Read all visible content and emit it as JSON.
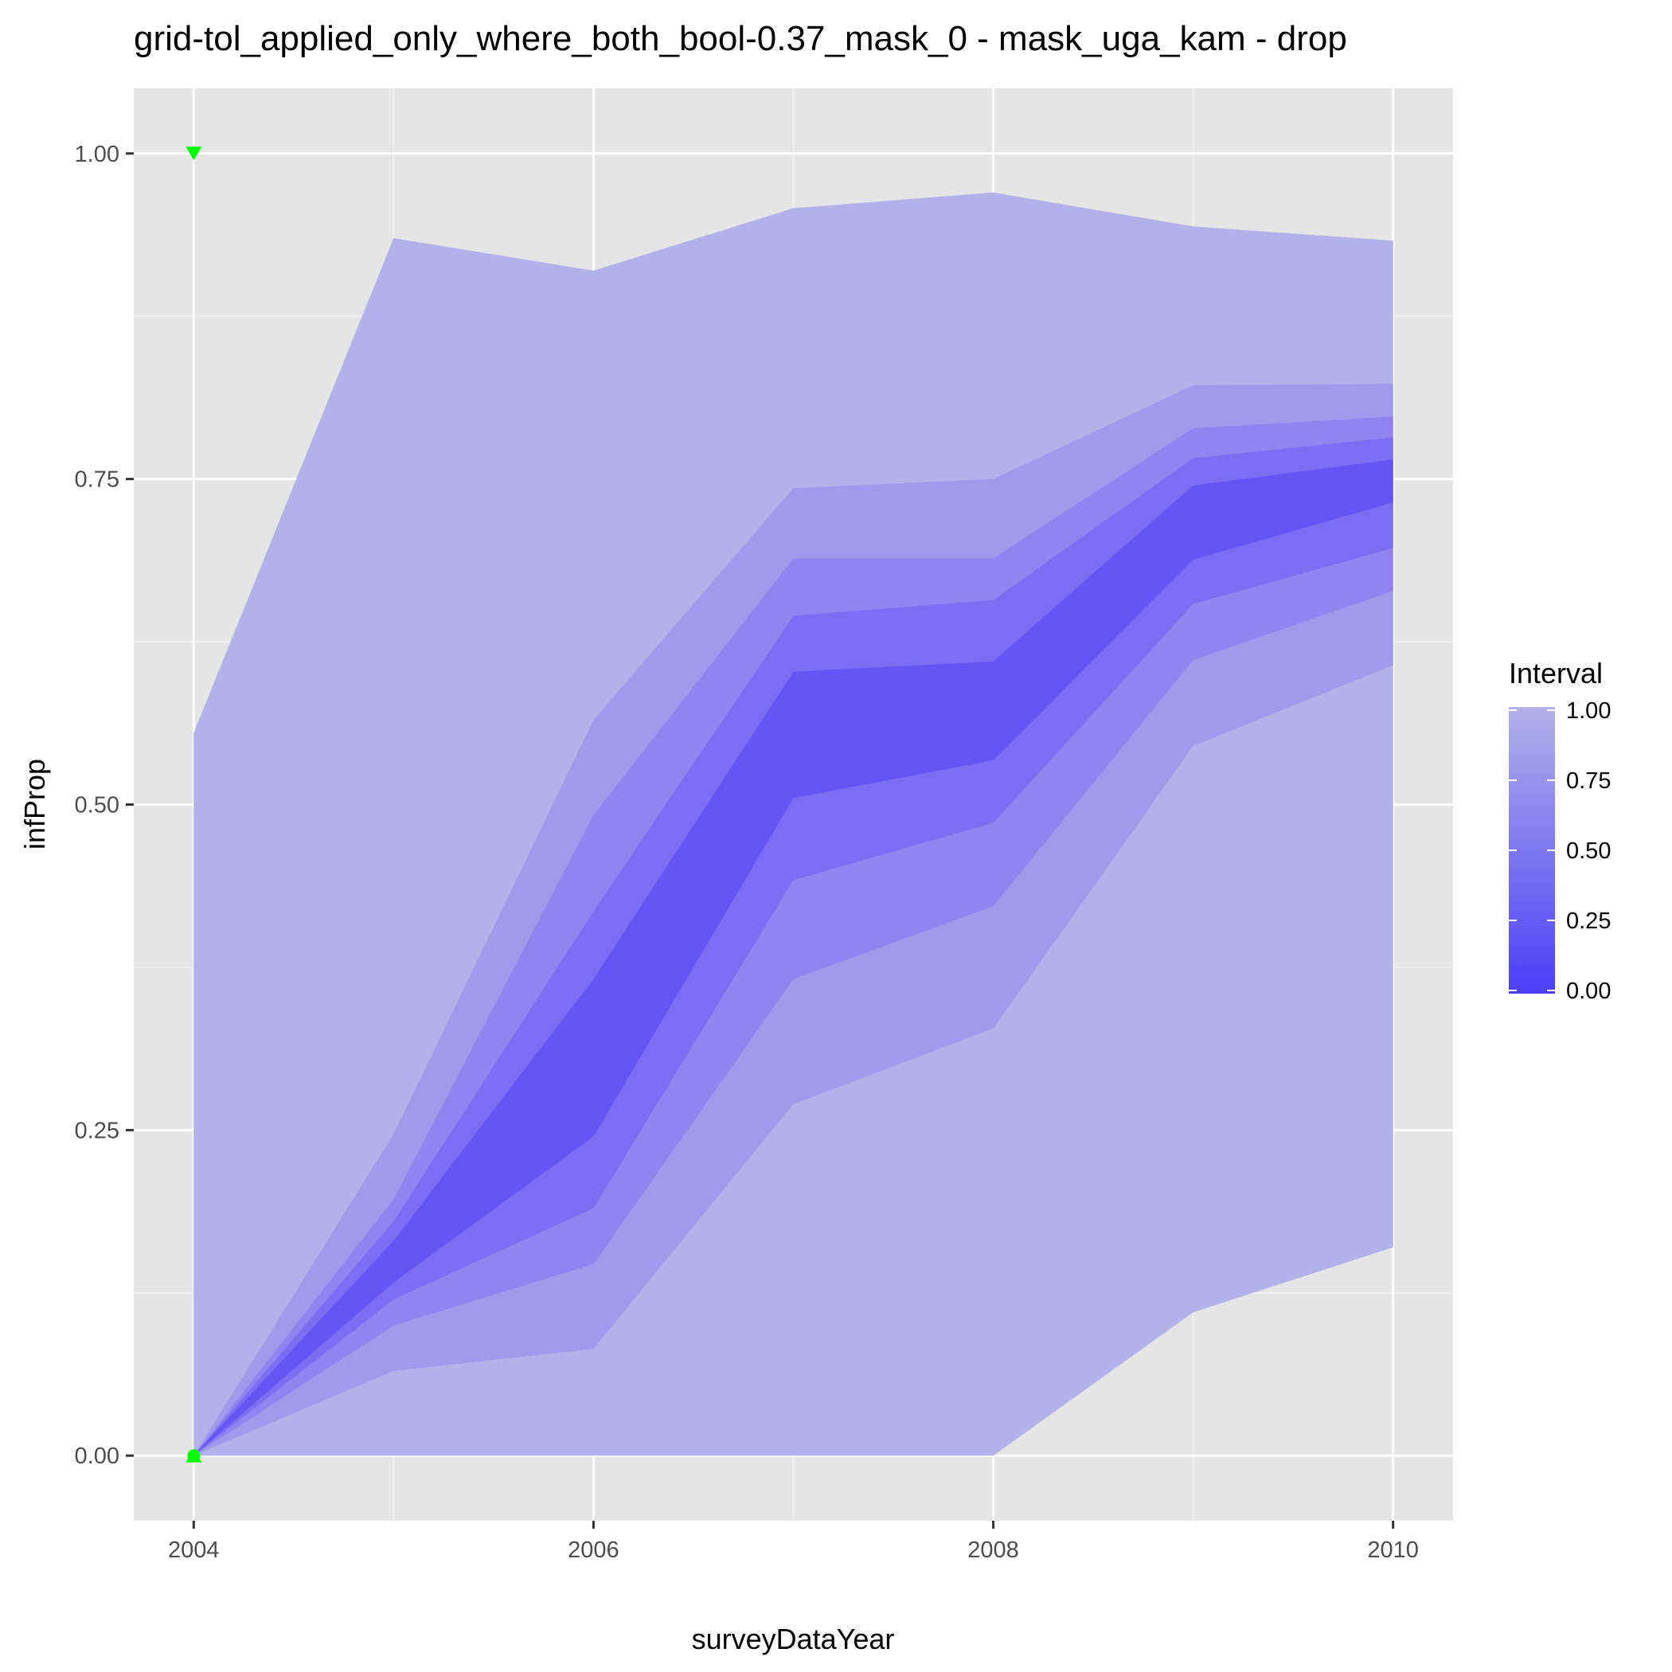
{
  "chart_data": {
    "type": "area",
    "title": "grid-tol_applied_only_where_both_bool-0.37_mask_0 - mask_uga_kam - drop",
    "xlabel": "surveyDataYear",
    "ylabel": "infProp",
    "xlim": [
      2003.7,
      2010.3
    ],
    "ylim": [
      -0.05,
      1.05
    ],
    "x_ticks": [
      2004,
      2006,
      2008,
      2010
    ],
    "x_tick_labels": [
      "2004",
      "2006",
      "2008",
      "2010"
    ],
    "y_ticks": [
      0,
      0.25,
      0.5,
      0.75,
      1
    ],
    "y_tick_labels": [
      "0.00",
      "0.25",
      "0.50",
      "0.75",
      "1.00"
    ],
    "x": [
      2004,
      2005,
      2006,
      2007,
      2008,
      2009,
      2010
    ],
    "bands": [
      {
        "interval": 1.0,
        "color": "#b2b1e9",
        "lower": [
          0.0,
          0.0,
          0.0,
          0.0,
          0.0,
          0.11,
          0.16
        ],
        "upper": [
          0.555,
          0.935,
          0.91,
          0.958,
          0.97,
          0.944,
          0.933
        ]
      },
      {
        "interval": 0.8,
        "color": "#a19aec",
        "lower": [
          0.0,
          0.065,
          0.082,
          0.27,
          0.328,
          0.545,
          0.607
        ],
        "upper": [
          0.0,
          0.247,
          0.565,
          0.743,
          0.75,
          0.822,
          0.823
        ]
      },
      {
        "interval": 0.6,
        "color": "#8f84f0",
        "lower": [
          0.0,
          0.1,
          0.147,
          0.366,
          0.422,
          0.611,
          0.664
        ],
        "upper": [
          0.0,
          0.197,
          0.492,
          0.689,
          0.689,
          0.789,
          0.798
        ]
      },
      {
        "interval": 0.4,
        "color": "#7b6ef3",
        "lower": [
          0.0,
          0.12,
          0.19,
          0.442,
          0.486,
          0.654,
          0.697
        ],
        "upper": [
          0.0,
          0.18,
          0.418,
          0.645,
          0.657,
          0.766,
          0.782
        ]
      },
      {
        "interval": 0.2,
        "color": "#6655f5",
        "lower": [
          0.0,
          0.133,
          0.245,
          0.505,
          0.534,
          0.688,
          0.732
        ],
        "upper": [
          0.0,
          0.165,
          0.366,
          0.602,
          0.61,
          0.745,
          0.765
        ]
      }
    ],
    "points": [
      {
        "x": 2004,
        "y": 1.0,
        "shape": "triangle-down",
        "color": "#00ff00"
      },
      {
        "x": 2004,
        "y": 0.0,
        "shape": "triangle-up",
        "color": "#00ff00"
      },
      {
        "x": 2004,
        "y": 0.0,
        "shape": "circle",
        "color": "#00ff00"
      }
    ],
    "legend": {
      "title": "Interval",
      "placement": "right",
      "type": "colorbar",
      "color_low": "#4b3ef7",
      "color_high": "#b2b1e9",
      "ticks": [
        0,
        0.25,
        0.5,
        0.75,
        1
      ],
      "tick_labels": [
        "0.00",
        "0.25",
        "0.50",
        "0.75",
        "1.00"
      ]
    },
    "panel_background": "#e5e5e5",
    "grid": true
  }
}
